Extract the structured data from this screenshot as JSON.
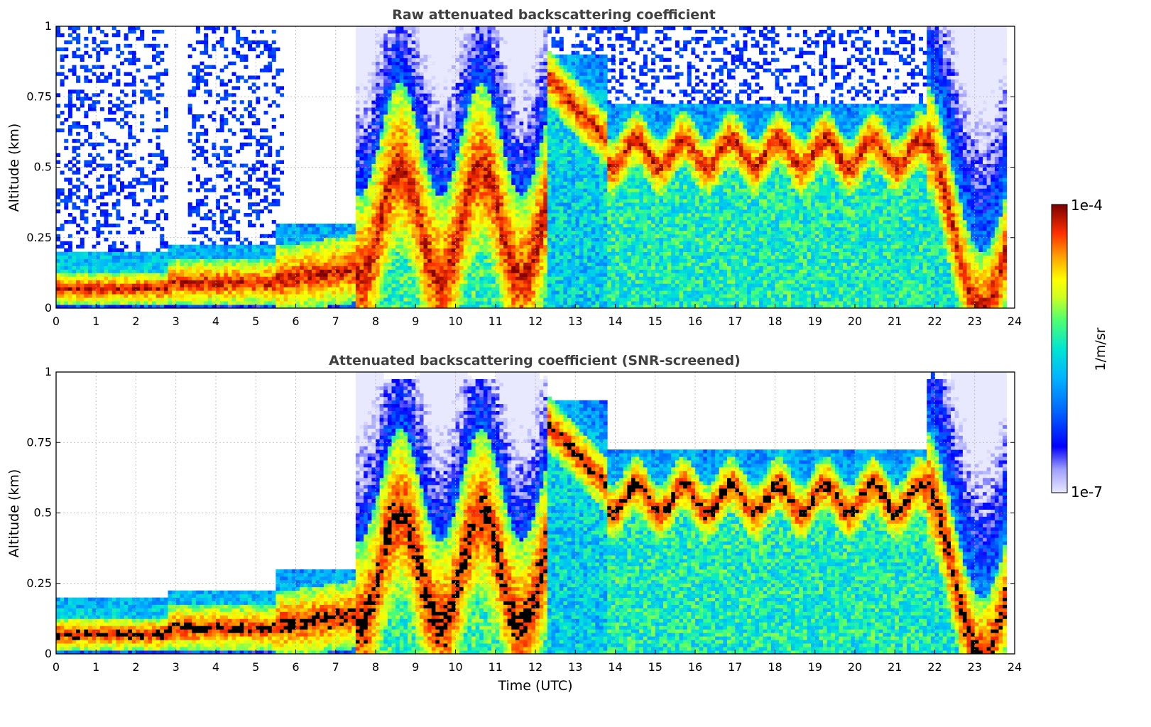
{
  "chart_data": [
    {
      "type": "heatmap",
      "title": "Raw attenuated backscattering coefficient",
      "xlabel": "",
      "ylabel": "Altitude (km)",
      "xlim": [
        0,
        24
      ],
      "ylim": [
        0,
        1
      ],
      "xticks": [
        "0",
        "1",
        "2",
        "3",
        "4",
        "5",
        "6",
        "7",
        "8",
        "9",
        "10",
        "11",
        "12",
        "13",
        "14",
        "15",
        "16",
        "17",
        "18",
        "19",
        "20",
        "21",
        "22",
        "23",
        "24"
      ],
      "yticks": [
        "0",
        "0.25",
        "0.5",
        "0.75",
        "1"
      ],
      "grid": true,
      "color_scale": "log",
      "value_range": [
        "1e-7",
        "1e-4"
      ],
      "features": [
        {
          "t0": 0,
          "t1": 2.8,
          "layer_top_km": 0.2,
          "peak_alt_km": 0.07,
          "description": "surface aerosol layer"
        },
        {
          "t0": 2.8,
          "t1": 5.5,
          "layer_top_km": 0.22,
          "peak_alt_km": 0.09
        },
        {
          "t0": 5.5,
          "t1": 7.5,
          "layer_top_km": 0.3,
          "peak_alt_km": 0.1
        },
        {
          "t0": 7.5,
          "t1": 12.3,
          "layer_top_km": 1.0,
          "peak_alt_km": 0.3
        },
        {
          "t0": 12.3,
          "t1": 13.8,
          "layer_top_km": 0.9,
          "peak_alt_km": 0.82
        },
        {
          "t0": 13.8,
          "t1": 21.8,
          "layer_top_km": 0.72,
          "peak_alt_km": 0.58
        },
        {
          "t0": 21.8,
          "t1": 23.8,
          "layer_top_km": 1.0,
          "peak_alt_km": 0.3
        }
      ]
    },
    {
      "type": "heatmap",
      "title": "Attenuated backscattering coefficient (SNR-screened)",
      "xlabel": "Time (UTC)",
      "ylabel": "Altitude (km)",
      "xlim": [
        0,
        24
      ],
      "ylim": [
        0,
        1
      ],
      "xticks": [
        "0",
        "1",
        "2",
        "3",
        "4",
        "5",
        "6",
        "7",
        "8",
        "9",
        "10",
        "11",
        "12",
        "13",
        "14",
        "15",
        "16",
        "17",
        "18",
        "19",
        "20",
        "21",
        "22",
        "23",
        "24"
      ],
      "yticks": [
        "0",
        "0.25",
        "0.5",
        "0.75",
        "1"
      ],
      "grid": true,
      "color_scale": "log",
      "value_range": [
        "1e-7",
        "1e-4"
      ]
    }
  ],
  "colorbar": {
    "top_label": "1e-4",
    "bottom_label": "1e-7",
    "unit_label": "1/m/sr",
    "colors": [
      "#e8e8ff",
      "#b0b0ff",
      "#0000ff",
      "#0064ff",
      "#00aaff",
      "#00e0e0",
      "#40ff80",
      "#c0ff20",
      "#ffff00",
      "#ffb000",
      "#ff5000",
      "#e00000",
      "#800000"
    ]
  }
}
